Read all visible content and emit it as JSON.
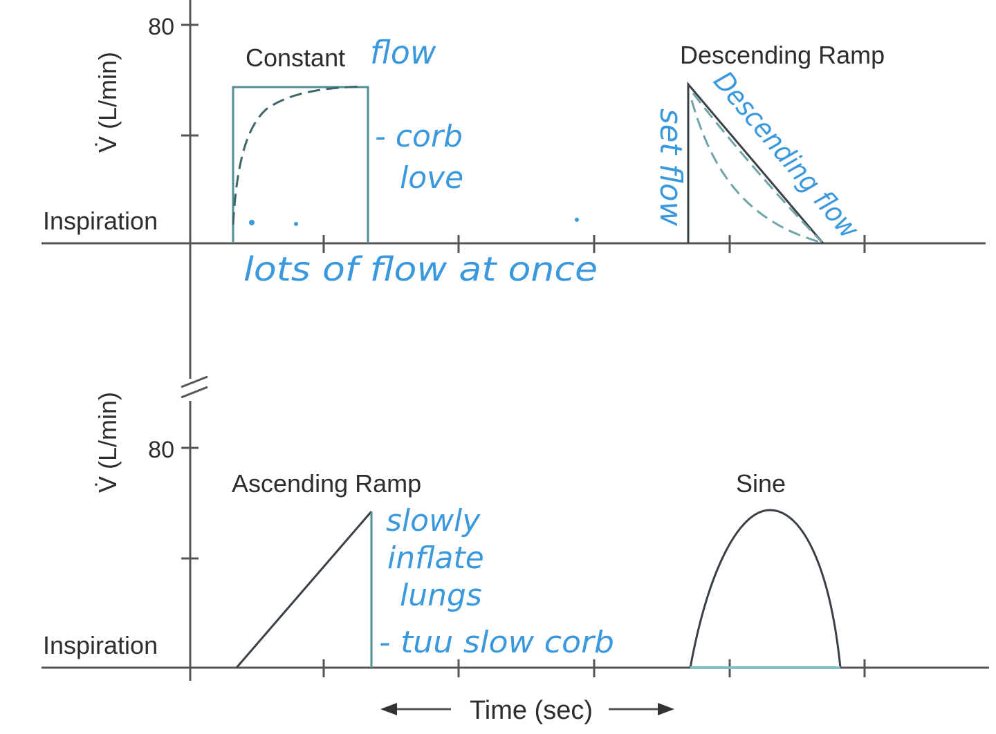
{
  "y_axis": {
    "top_label": "V̇ (L/min)",
    "bottom_label": "V̇ (L/min)",
    "top_tick": "80",
    "bottom_tick": "80",
    "top_baseline_label": "Inspiration",
    "bottom_baseline_label": "Inspiration"
  },
  "x_axis": {
    "label": "Time (sec)"
  },
  "waveforms": {
    "constant": "Constant",
    "descending": "Descending Ramp",
    "ascending": "Ascending Ramp",
    "sine": "Sine"
  },
  "handwritten_notes": {
    "constant_flow": "flow",
    "comfort_1": "- corb",
    "comfort_2": "love",
    "lots_of_flow": "lots of flow at once",
    "set_flow": "set flow",
    "descending_flow": "Descending flow",
    "slowly": "slowly",
    "inflate": "inflate",
    "lungs": "lungs",
    "too_slow": "- tuu slow corb"
  },
  "colors": {
    "annotation": "#3a98dc",
    "axis": "#555555",
    "waveform": "#3a4046",
    "waveform_teal": "#4f8e92"
  }
}
